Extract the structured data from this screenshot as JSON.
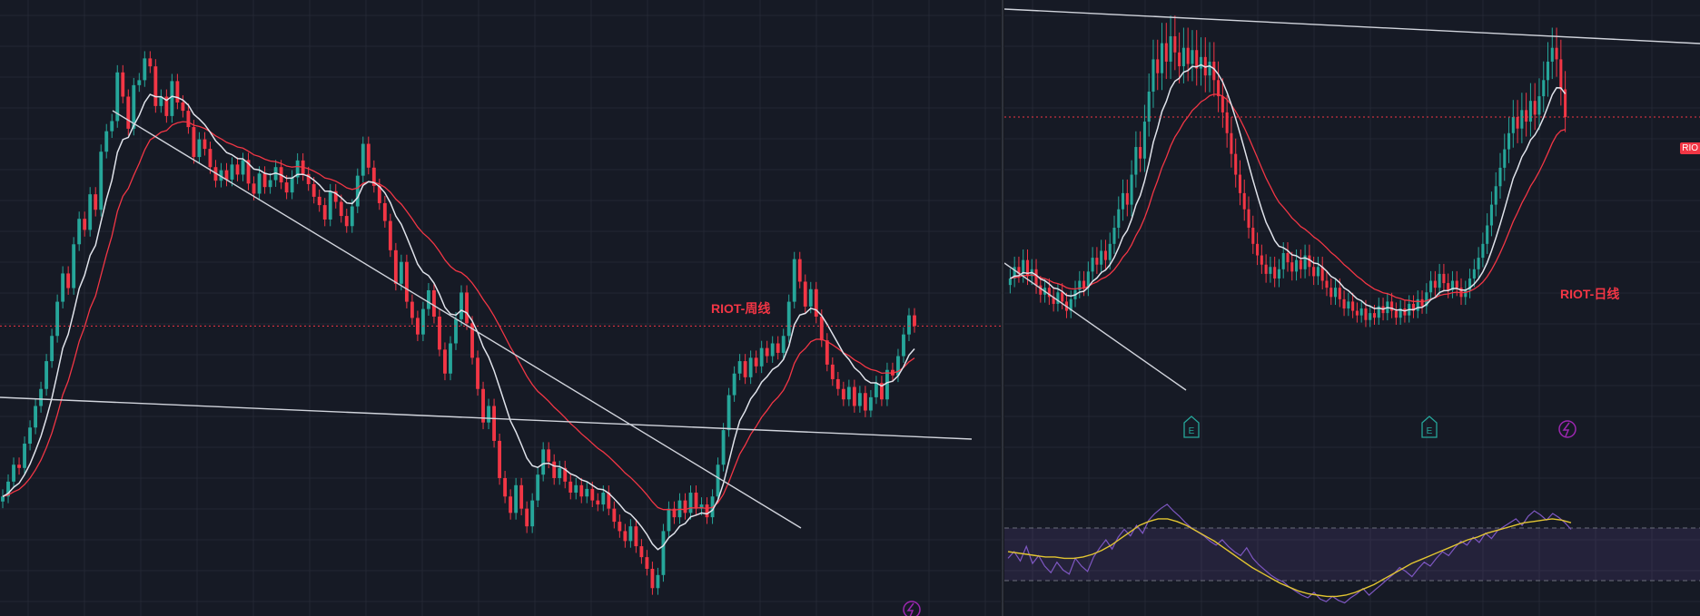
{
  "colors": {
    "background": "#161a25",
    "grid": "#232733",
    "candle_up": "#26a69a",
    "candle_down": "#f23645",
    "ma_fast": "#e0e3eb",
    "ma_slow": "#f23645",
    "trendline": "#d1d4dc",
    "rsi_line": "#7e57c2",
    "rsi_ma": "#e2c531",
    "rsi_band": "#7e57c2"
  },
  "icons": {
    "earnings": "earnings-icon",
    "dividend": "lightning-icon"
  },
  "chart_data": [
    {
      "type": "candlestick",
      "title": "RIOT-周线",
      "timeframe": "weekly",
      "grid": true,
      "close": [
        4.2,
        4.6,
        5.1,
        5.0,
        5.8,
        6.4,
        7.3,
        8.1,
        9.6,
        11.2,
        13.8,
        16.4,
        15.0,
        19.6,
        22.9,
        21.4,
        26.6,
        24.2,
        34.5,
        39.1,
        41.6,
        56.0,
        48.3,
        39.7,
        51.8,
        53.4,
        61.0,
        58.1,
        45.6,
        48.3,
        42.9,
        53.1,
        46.6,
        44.3,
        40.1,
        33.4,
        37.2,
        35.1,
        31.4,
        28.9,
        30.8,
        29.1,
        31.9,
        30.0,
        32.8,
        28.4,
        26.7,
        30.2,
        27.8,
        29.0,
        31.4,
        28.6,
        26.9,
        29.5,
        32.7,
        30.1,
        28.3,
        26.2,
        24.9,
        22.8,
        27.1,
        25.4,
        23.3,
        21.9,
        24.7,
        29.8,
        36.2,
        31.3,
        28.0,
        25.2,
        22.6,
        18.9,
        15.4,
        17.6,
        13.8,
        12.5,
        11.3,
        13.2,
        14.8,
        12.6,
        10.3,
        8.9,
        10.7,
        12.4,
        14.6,
        12.1,
        9.8,
        8.1,
        6.6,
        7.3,
        5.9,
        4.7,
        4.2,
        3.8,
        4.5,
        3.9,
        3.5,
        4.1,
        4.8,
        5.6,
        5.2,
        4.7,
        5.0,
        4.6,
        4.3,
        4.5,
        4.2,
        4.4,
        4.1,
        4.0,
        4.3,
        3.9,
        3.6,
        3.4,
        3.2,
        3.5,
        3.1,
        2.9,
        2.7,
        2.4,
        2.6,
        3.4,
        3.9,
        3.7,
        4.1,
        3.8,
        4.3,
        3.9,
        4.0,
        3.7,
        4.2,
        5.1,
        6.3,
        7.8,
        8.9,
        9.6,
        8.7,
        9.8,
        9.3,
        10.4,
        9.9,
        10.7,
        10.1,
        11.2,
        13.8,
        17.9,
        15.6,
        13.4,
        14.9,
        12.6,
        10.9,
        9.4,
        8.6,
        8.1,
        7.6,
        8.2,
        7.3,
        7.9,
        7.1,
        7.7,
        8.4,
        7.6,
        9.1,
        8.8,
        9.9,
        11.3,
        12.7,
        11.9
      ]
    },
    {
      "type": "candlestick",
      "title": "RIOT-日线",
      "timeframe": "daily",
      "grid": true,
      "close": [
        9.4,
        9.9,
        9.6,
        10.2,
        9.5,
        9.8,
        9.1,
        8.7,
        9.0,
        8.6,
        8.3,
        8.8,
        8.4,
        8.0,
        8.5,
        8.9,
        9.3,
        9.0,
        9.7,
        10.3,
        10.0,
        10.6,
        10.2,
        10.9,
        11.6,
        12.4,
        13.1,
        12.6,
        13.9,
        15.1,
        14.6,
        16.2,
        17.5,
        18.9,
        18.3,
        19.6,
        18.8,
        19.9,
        19.2,
        18.6,
        19.4,
        18.7,
        19.3,
        18.5,
        19.0,
        18.2,
        18.8,
        18.0,
        17.3,
        16.6,
        15.7,
        14.8,
        13.9,
        13.1,
        12.4,
        11.6,
        10.9,
        10.4,
        10.0,
        9.6,
        9.9,
        9.4,
        9.8,
        10.5,
        10.1,
        9.7,
        10.2,
        9.8,
        10.4,
        9.9,
        9.5,
        9.9,
        9.3,
        9.0,
        8.6,
        9.0,
        8.5,
        8.1,
        8.4,
        8.0,
        7.8,
        8.1,
        7.6,
        7.9,
        7.7,
        8.2,
        7.9,
        8.4,
        8.0,
        7.7,
        8.1,
        7.8,
        8.3,
        8.0,
        8.5,
        8.2,
        8.8,
        9.3,
        9.0,
        9.6,
        9.2,
        8.9,
        9.3,
        9.0,
        8.6,
        8.9,
        9.4,
        9.8,
        10.3,
        10.9,
        11.7,
        12.6,
        13.4,
        14.2,
        15.0,
        15.7,
        16.4,
        15.9,
        16.7,
        16.2,
        17.1,
        16.5,
        17.3,
        18.0,
        18.8,
        19.4,
        18.9,
        17.6,
        16.4
      ],
      "rsi": [
        47,
        52,
        45,
        56,
        43,
        49,
        41,
        36,
        44,
        38,
        35,
        47,
        41,
        37,
        48,
        55,
        61,
        54,
        63,
        69,
        64,
        72,
        66,
        76,
        81,
        85,
        88,
        83,
        79,
        74,
        70,
        67,
        64,
        60,
        57,
        61,
        56,
        52,
        49,
        55,
        47,
        42,
        38,
        34,
        31,
        29,
        25,
        22,
        19,
        17,
        21,
        16,
        14,
        18,
        15,
        13,
        17,
        20,
        24,
        19,
        23,
        27,
        31,
        35,
        40,
        37,
        33,
        39,
        44,
        41,
        47,
        52,
        49,
        55,
        60,
        57,
        63,
        59,
        66,
        62,
        68,
        71,
        74,
        77,
        72,
        79,
        83,
        80,
        76,
        81,
        78,
        74,
        69
      ],
      "rsi_ma": [
        52,
        51,
        50,
        49,
        48,
        48,
        47,
        47,
        48,
        50,
        53,
        57,
        62,
        67,
        72,
        75,
        77,
        77,
        75,
        72,
        68,
        64,
        60,
        55,
        50,
        45,
        40,
        36,
        32,
        28,
        25,
        22,
        20,
        19,
        18,
        18,
        19,
        21,
        24,
        27,
        31,
        35,
        39,
        43,
        46,
        49,
        52,
        55,
        58,
        61,
        63,
        66,
        68,
        70,
        72,
        74,
        75,
        76,
        77,
        76,
        74
      ],
      "rsi_band": [
        30,
        70
      ]
    }
  ]
}
